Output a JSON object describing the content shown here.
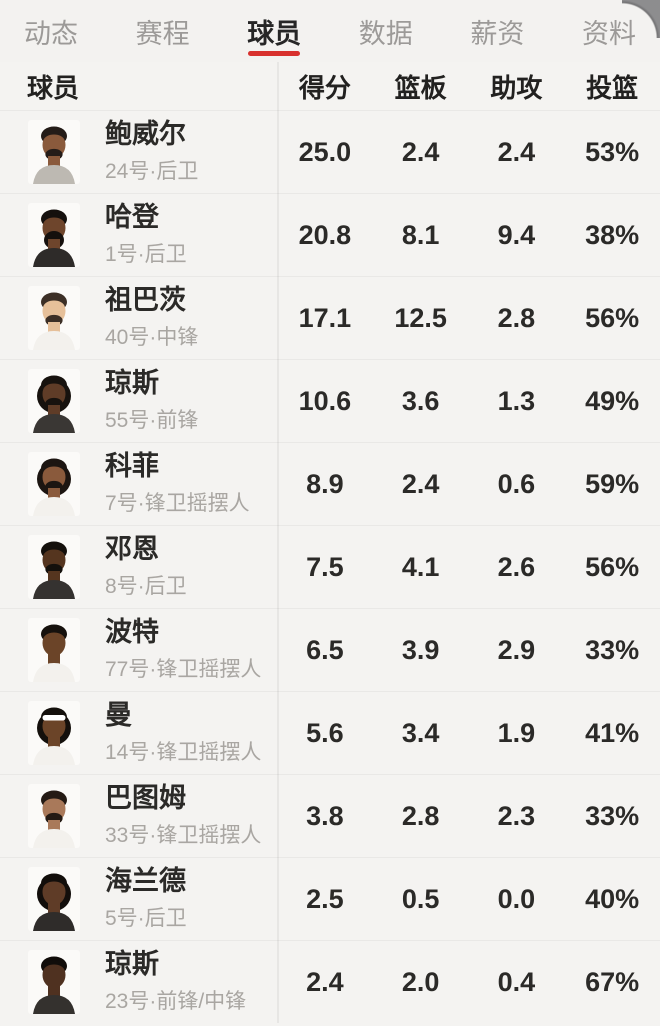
{
  "accent_color": "#d8312e",
  "tabs": [
    {
      "key": "news",
      "label": "动态",
      "active": false
    },
    {
      "key": "schedule",
      "label": "赛程",
      "active": false
    },
    {
      "key": "players",
      "label": "球员",
      "active": true
    },
    {
      "key": "data",
      "label": "数据",
      "active": false
    },
    {
      "key": "salary",
      "label": "薪资",
      "active": false
    },
    {
      "key": "profile",
      "label": "资料",
      "active": false
    }
  ],
  "table": {
    "player_column_header": "球员",
    "stat_columns": [
      {
        "key": "points",
        "label": "得分"
      },
      {
        "key": "rebounds",
        "label": "篮板"
      },
      {
        "key": "assists",
        "label": "助攻"
      },
      {
        "key": "fg",
        "label": "投篮"
      }
    ],
    "rows": [
      {
        "name": "鲍威尔",
        "detail": "24号·后卫",
        "stats": [
          "25.0",
          "2.4",
          "2.4",
          "53%"
        ],
        "avatar": {
          "skin": "#8a5a3c",
          "hair": "#241c18",
          "beard": "short",
          "style": "short",
          "jersey": "#bdb9b2"
        }
      },
      {
        "name": "哈登",
        "detail": "1号·后卫",
        "stats": [
          "20.8",
          "8.1",
          "9.4",
          "38%"
        ],
        "avatar": {
          "skin": "#6e452c",
          "hair": "#15100d",
          "beard": "big",
          "style": "short",
          "jersey": "#2e2b29"
        }
      },
      {
        "name": "祖巴茨",
        "detail": "40号·中锋",
        "stats": [
          "17.1",
          "12.5",
          "2.8",
          "56%"
        ],
        "avatar": {
          "skin": "#e6c09a",
          "hair": "#3c2f26",
          "beard": "short",
          "style": "short",
          "jersey": "#f3f1ed"
        }
      },
      {
        "name": "琼斯",
        "detail": "55号·前锋",
        "stats": [
          "10.6",
          "3.6",
          "1.3",
          "49%"
        ],
        "avatar": {
          "skin": "#5f3c27",
          "hair": "#17120e",
          "beard": "short",
          "style": "dreads",
          "jersey": "#3a3734"
        }
      },
      {
        "name": "科菲",
        "detail": "7号·锋卫摇摆人",
        "stats": [
          "8.9",
          "2.4",
          "0.6",
          "59%"
        ],
        "avatar": {
          "skin": "#8a5a3c",
          "hair": "#1c1511",
          "beard": "short",
          "style": "dreads",
          "jersey": "#f3f1ed"
        }
      },
      {
        "name": "邓恩",
        "detail": "8号·后卫",
        "stats": [
          "7.5",
          "4.1",
          "2.6",
          "56%"
        ],
        "avatar": {
          "skin": "#55351f",
          "hair": "#14100c",
          "beard": "short",
          "style": "short",
          "jersey": "#353230"
        }
      },
      {
        "name": "波特",
        "detail": "77号·锋卫摇摆人",
        "stats": [
          "6.5",
          "3.9",
          "2.9",
          "33%"
        ],
        "avatar": {
          "skin": "#6b4428",
          "hair": "#16110d",
          "beard": "none",
          "style": "short",
          "jersey": "#f3f1ed"
        }
      },
      {
        "name": "曼",
        "detail": "14号·锋卫摇摆人",
        "stats": [
          "5.6",
          "3.4",
          "1.9",
          "41%"
        ],
        "avatar": {
          "skin": "#6b4428",
          "hair": "#14100c",
          "beard": "none",
          "style": "headband",
          "jersey": "#f3f1ed"
        }
      },
      {
        "name": "巴图姆",
        "detail": "33号·锋卫摇摆人",
        "stats": [
          "3.8",
          "2.8",
          "2.3",
          "33%"
        ],
        "avatar": {
          "skin": "#a9795a",
          "hair": "#241a14",
          "beard": "short",
          "style": "short",
          "jersey": "#f3f1ed"
        }
      },
      {
        "name": "海兰德",
        "detail": "5号·后卫",
        "stats": [
          "2.5",
          "0.5",
          "0.0",
          "40%"
        ],
        "avatar": {
          "skin": "#5f3c27",
          "hair": "#120e0b",
          "beard": "none",
          "style": "dreads",
          "jersey": "#2f2c2a"
        }
      },
      {
        "name": "琼斯",
        "detail": "23号·前锋/中锋",
        "stats": [
          "2.4",
          "2.0",
          "0.4",
          "67%"
        ],
        "avatar": {
          "skin": "#4f3120",
          "hair": "#110d0a",
          "beard": "none",
          "style": "short",
          "jersey": "#34312e"
        }
      }
    ]
  }
}
